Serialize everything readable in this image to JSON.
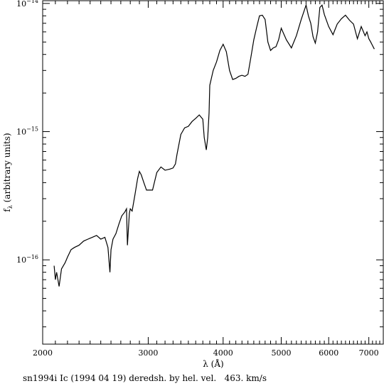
{
  "chart_data": {
    "type": "line",
    "xlabel": "λ (Å)",
    "ylabel": "f_λ (arbitrary units)",
    "ylabel_main": "f",
    "ylabel_sub": "λ",
    "ylabel_rest": " (arbitrary units)",
    "x_scale": "log",
    "y_scale": "log",
    "xlim": [
      2000,
      7400
    ],
    "ylim": [
      2.2e-17,
      1.05e-14
    ],
    "x_ticks": [
      {
        "value": 2000,
        "label": "2000"
      },
      {
        "value": 3000,
        "label": "3000"
      },
      {
        "value": 4000,
        "label": "4000"
      },
      {
        "value": 5000,
        "label": "5000"
      },
      {
        "value": 6000,
        "label": "6000"
      },
      {
        "value": 7000,
        "label": "7000"
      }
    ],
    "y_ticks": [
      {
        "value": 1e-16,
        "base": "10",
        "exp": "−16"
      },
      {
        "value": 1e-15,
        "base": "10",
        "exp": "−15"
      },
      {
        "value": 1e-14,
        "base": "10",
        "exp": "−14"
      }
    ],
    "series": [
      {
        "x": [
          2090,
          2100,
          2110,
          2130,
          2150,
          2180,
          2200,
          2230,
          2260,
          2300,
          2340,
          2380,
          2420,
          2460,
          2500,
          2540,
          2570,
          2590,
          2600,
          2620,
          2650,
          2680,
          2710,
          2740,
          2760,
          2770,
          2790,
          2800,
          2820,
          2850,
          2880,
          2900,
          2920,
          2950,
          2980,
          3000,
          3050,
          3100,
          3150,
          3200,
          3260,
          3300,
          3330,
          3350,
          3400,
          3450,
          3500,
          3550,
          3600,
          3650,
          3700,
          3720,
          3750,
          3770,
          3790,
          3800,
          3850,
          3900,
          3950,
          4000,
          4050,
          4100,
          4150,
          4200,
          4250,
          4300,
          4350,
          4400,
          4450,
          4500,
          4550,
          4600,
          4650,
          4700,
          4750,
          4800,
          4850,
          4900,
          4950,
          5000,
          5100,
          5200,
          5300,
          5400,
          5500,
          5550,
          5600,
          5650,
          5700,
          5750,
          5800,
          5850,
          5900,
          6000,
          6100,
          6200,
          6300,
          6400,
          6500,
          6600,
          6700,
          6800,
          6900,
          6950,
          7000,
          7050,
          7100,
          7150
        ],
        "y": [
          9e-17,
          7e-17,
          8e-17,
          6.2e-17,
          8.5e-17,
          9.5e-17,
          1.05e-16,
          1.2e-16,
          1.25e-16,
          1.3e-16,
          1.4e-16,
          1.45e-16,
          1.5e-16,
          1.55e-16,
          1.45e-16,
          1.5e-16,
          1.25e-16,
          8e-17,
          1.2e-16,
          1.45e-16,
          1.6e-16,
          1.9e-16,
          2.2e-16,
          2.35e-16,
          2.5e-16,
          1.3e-16,
          2.3e-16,
          2.5e-16,
          2.4e-16,
          3.2e-16,
          4.3e-16,
          4.9e-16,
          4.6e-16,
          4e-16,
          3.5e-16,
          3.5e-16,
          3.5e-16,
          4.8e-16,
          5.3e-16,
          5e-16,
          5.1e-16,
          5.2e-16,
          5.6e-16,
          6.6e-16,
          9.5e-16,
          1.07e-15,
          1.1e-15,
          1.2e-15,
          1.27e-15,
          1.35e-15,
          1.25e-15,
          9e-16,
          7.2e-16,
          9e-16,
          1.4e-15,
          2.3e-15,
          3e-15,
          3.5e-15,
          4.3e-15,
          4.8e-15,
          4.2e-15,
          3e-15,
          2.55e-15,
          2.6e-15,
          2.7e-15,
          2.75e-15,
          2.7e-15,
          2.8e-15,
          3.8e-15,
          5.2e-15,
          6.5e-15,
          8e-15,
          8.1e-15,
          7.5e-15,
          5e-15,
          4.3e-15,
          4.5e-15,
          4.6e-15,
          5.2e-15,
          6.4e-15,
          5.2e-15,
          4.5e-15,
          5.6e-15,
          7.5e-15,
          9.7e-15,
          8e-15,
          7e-15,
          5.5e-15,
          4.9e-15,
          6e-15,
          9.3e-15,
          9.7e-15,
          8.2e-15,
          6.6e-15,
          5.7e-15,
          6.9e-15,
          7.6e-15,
          8.1e-15,
          7.4e-15,
          6.9e-15,
          5.3e-15,
          6.6e-15,
          5.6e-15,
          6e-15,
          5.3e-15,
          5e-15,
          4.7e-15,
          4.4e-15
        ]
      }
    ]
  },
  "caption": "sn1994i Ic (1994 04 19) deredsh. by hel. vel.   463. km/s"
}
